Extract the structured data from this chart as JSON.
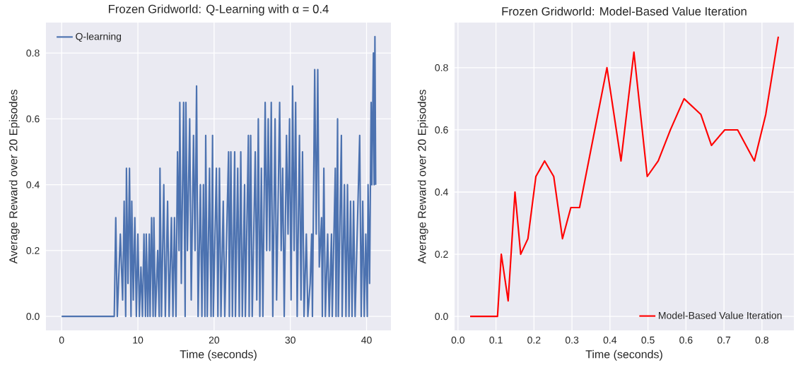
{
  "chart_data": [
    {
      "type": "line",
      "title": "Frozen Gridworld: Q-Learning with α = 0.4",
      "xlabel": "Time (seconds)",
      "ylabel": "Average Reward over 20 Episodes",
      "grid": true,
      "legend": "top left",
      "xlim": [
        -2.06,
        43.2
      ],
      "ylim": [
        -0.0425,
        0.8925
      ],
      "xticks": [
        0,
        10,
        20,
        30,
        40
      ],
      "yticks": [
        {
          "value": 0,
          "label": "0.0"
        },
        {
          "value": 0.2,
          "label": "0.2"
        },
        {
          "value": 0.4,
          "label": "0.4"
        },
        {
          "value": 0.6,
          "label": "0.6"
        },
        {
          "value": 0.8,
          "label": "0.8"
        }
      ],
      "x": [
        0,
        6.9,
        7.1,
        7.3,
        7.7,
        8.0,
        8.2,
        8.4,
        8.5,
        8.7,
        8.9,
        9.1,
        9.2,
        9.4,
        9.6,
        9.8,
        10.0,
        10.2,
        10.4,
        10.6,
        10.8,
        11.0,
        11.1,
        11.3,
        11.5,
        11.6,
        11.8,
        12.0,
        12.1,
        12.3,
        12.6,
        12.8,
        12.9,
        13.1,
        13.4,
        13.6,
        13.9,
        14.1,
        14.4,
        14.6,
        14.8,
        15.0,
        15.2,
        15.4,
        15.5,
        15.7,
        16.0,
        16.2,
        16.3,
        16.5,
        16.8,
        17.0,
        17.3,
        17.5,
        17.7,
        17.9,
        18.2,
        18.4,
        18.6,
        18.8,
        18.9,
        19.1,
        19.4,
        19.6,
        19.8,
        19.9,
        20.3,
        20.5,
        20.7,
        20.9,
        21.2,
        21.4,
        21.9,
        22.0,
        22.2,
        22.4,
        22.7,
        22.8,
        23.1,
        23.3,
        23.5,
        23.7,
        24.0,
        24.1,
        24.5,
        24.6,
        24.8,
        25.0,
        25.4,
        25.6,
        25.8,
        26.0,
        26.2,
        26.4,
        26.7,
        26.9,
        27.1,
        27.3,
        27.5,
        27.7,
        28.0,
        28.2,
        28.6,
        28.8,
        29.0,
        29.2,
        29.5,
        29.7,
        29.9,
        30.1,
        30.3,
        30.5,
        30.7,
        30.9,
        31.2,
        31.4,
        31.6,
        31.8,
        32.1,
        32.3,
        32.6,
        32.8,
        32.9,
        33.2,
        33.4,
        33.6,
        33.8,
        34.1,
        34.2,
        34.4,
        34.6,
        34.9,
        35.1,
        35.4,
        35.5,
        35.9,
        36.0,
        36.2,
        36.3,
        36.7,
        36.8,
        37.1,
        37.3,
        37.5,
        37.7,
        37.9,
        38.1,
        38.3,
        38.5,
        39.1,
        39.3,
        39.5,
        39.7,
        39.9,
        40.1,
        40.2,
        40.4,
        40.6,
        40.7,
        40.9,
        41.0,
        41.1,
        41.2
      ],
      "series": [
        {
          "name": "Q-learning",
          "color": "#4c72b0",
          "line_style": "solid",
          "values": [
            0,
            0,
            0.3,
            0,
            0.25,
            0.05,
            0.35,
            0,
            0.45,
            0.1,
            0.45,
            0,
            0.35,
            0.05,
            0.3,
            0,
            0.25,
            0,
            0.15,
            0,
            0.25,
            0,
            0.25,
            0,
            0.25,
            0,
            0.3,
            0,
            0.3,
            0,
            0.2,
            0,
            0.45,
            0,
            0.4,
            0,
            0.35,
            0,
            0.3,
            0,
            0.3,
            0,
            0.5,
            0.2,
            0.65,
            0.1,
            0.65,
            0,
            0.65,
            0.2,
            0.6,
            0.05,
            0.55,
            0.2,
            0.7,
            0,
            0.4,
            0,
            0.4,
            0,
            0.55,
            0,
            0.45,
            0,
            0.55,
            0,
            0.45,
            0,
            0.45,
            0,
            0.35,
            0,
            0.5,
            0,
            0.5,
            0,
            0.5,
            0,
            0.45,
            0,
            0.5,
            0,
            0.4,
            0,
            0.55,
            0,
            0.55,
            0,
            0.5,
            0.05,
            0.6,
            0,
            0.45,
            0,
            0.65,
            0.2,
            0.6,
            0.2,
            0.65,
            0,
            0.6,
            0.05,
            0.65,
            0.2,
            0.45,
            0,
            0.55,
            0.25,
            0.6,
            0.05,
            0.7,
            0.2,
            0.65,
            0,
            0.55,
            0.05,
            0.5,
            0,
            0.25,
            0,
            0.1,
            0.25,
            0,
            0.75,
            0.25,
            0.75,
            0.15,
            0.3,
            0,
            0.45,
            0,
            0.25,
            0,
            0.25,
            0,
            0.45,
            0,
            0.6,
            0,
            0.55,
            0,
            0.4,
            0,
            0.4,
            0,
            0.35,
            0,
            0.35,
            0,
            0.55,
            0,
            0.35,
            0,
            0.25,
            0,
            0.4,
            0.1,
            0.65,
            0.4,
            0.8,
            0.4,
            0.85,
            0.4
          ]
        }
      ]
    },
    {
      "type": "line",
      "title": "Frozen Gridworld: Model-Based Value Iteration",
      "xlabel": "Time (seconds)",
      "ylabel": "Average Reward over 20 Episodes",
      "grid": true,
      "legend": "bottom right",
      "xlim": [
        -0.009,
        0.884
      ],
      "ylim": [
        -0.045,
        0.945
      ],
      "xticks": [
        {
          "value": 0,
          "label": "0.0"
        },
        0.1,
        0.2,
        0.3,
        0.4,
        0.5,
        0.6,
        0.7,
        0.8
      ],
      "yticks": [
        {
          "value": 0,
          "label": "0.0"
        },
        0.2,
        0.4,
        0.6,
        0.8
      ],
      "x": [
        0.032,
        0.104,
        0.114,
        0.132,
        0.15,
        0.165,
        0.184,
        0.205,
        0.228,
        0.252,
        0.275,
        0.297,
        0.32,
        0.36,
        0.392,
        0.429,
        0.463,
        0.498,
        0.527,
        0.559,
        0.595,
        0.639,
        0.667,
        0.702,
        0.736,
        0.78,
        0.81,
        0.843
      ],
      "series": [
        {
          "name": "Model-Based Value Iteration",
          "color": "#ff0000",
          "line_style": "solid",
          "values": [
            0,
            0,
            0.2,
            0.05,
            0.4,
            0.2,
            0.25,
            0.45,
            0.5,
            0.45,
            0.25,
            0.35,
            0.35,
            0.6,
            0.8,
            0.5,
            0.85,
            0.45,
            0.5,
            0.6,
            0.7,
            0.65,
            0.55,
            0.6,
            0.6,
            0.5,
            0.65,
            0.9
          ]
        }
      ]
    }
  ]
}
